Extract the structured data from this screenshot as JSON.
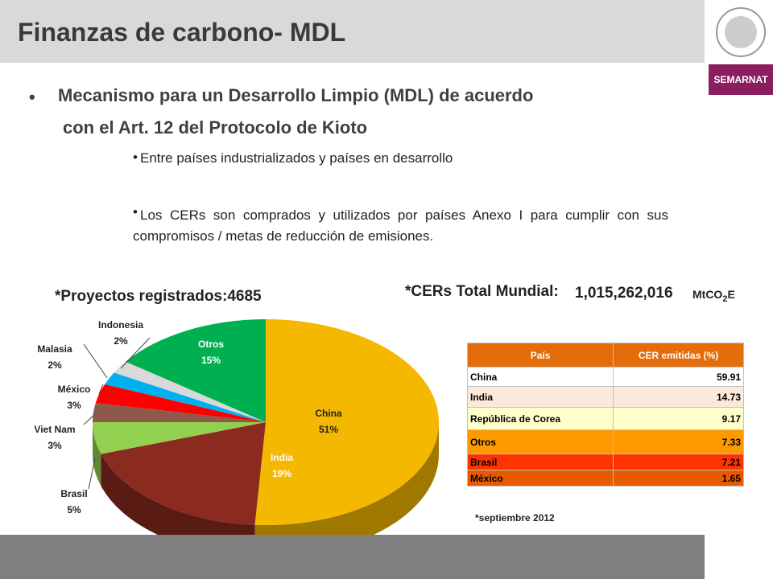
{
  "title": "Finanzas de carbono- MDL",
  "logo_label": "SEMARNAT",
  "bullets": [
    "Mecanismo para un Desarrollo Limpio (MDL) de acuerdo",
    "con el Art. 12 del Protocolo de Kioto"
  ],
  "sub_bullets": [
    "Entre países industrializados y países en desarrollo",
    "Los CERs son comprados y utilizados por países Anexo I para cumplir con sus compromisos / metas de reducción de emisiones."
  ],
  "chart_data": {
    "type": "pie",
    "title": "*Proyectos registrados:4685",
    "categories": [
      "China",
      "India",
      "Brasil",
      "Viet Nam",
      "México",
      "Malasia",
      "Indonesia",
      "Otros"
    ],
    "values": [
      51,
      19,
      5,
      3,
      3,
      2,
      2,
      15
    ],
    "value_labels": [
      "51%",
      "19%",
      "5%",
      "3%",
      "3%",
      "2%",
      "2%",
      "15%"
    ],
    "colors": [
      "#f5b800",
      "#8b2a1e",
      "#92d050",
      "#8b5a4a",
      "#ff0000",
      "#00b0f0",
      "#d9d9d9",
      "#00b050"
    ]
  },
  "cer_total": {
    "label": "*CERs Total Mundial:",
    "value": "1,015,262,016",
    "unit": [
      "MtCO",
      "2",
      "E"
    ]
  },
  "table": {
    "header": [
      "País",
      "CER emitidas (%)"
    ],
    "rows": [
      [
        "China",
        59.91
      ],
      [
        "India",
        14.73
      ],
      [
        "República de Corea",
        9.17
      ],
      [
        "Otros",
        7.33
      ],
      [
        "Brasil",
        7.21
      ],
      [
        "México",
        1.65
      ]
    ],
    "row_colors": [
      "#ffffff",
      "#fde9d9",
      "#ffffcc",
      "#ff9900",
      "#ff3300",
      "#e85a00"
    ],
    "header_color": "#e46c0a"
  },
  "footnote": "*septiembre 2012"
}
